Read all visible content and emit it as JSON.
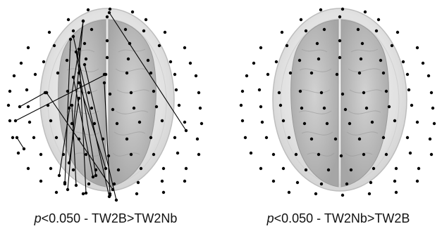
{
  "panels": [
    {
      "caption_var": "p",
      "caption_text": "<0.050 - TW2B>TW2Nb",
      "has_connections": true
    },
    {
      "caption_var": "p",
      "caption_text": "<0.050 - TW2Nb>TW2B",
      "has_connections": false
    }
  ],
  "colors": {
    "electrode": "#000000",
    "connection": "#000000",
    "scalp": "#d9d9d9",
    "brain": "#b8b8b8"
  }
}
